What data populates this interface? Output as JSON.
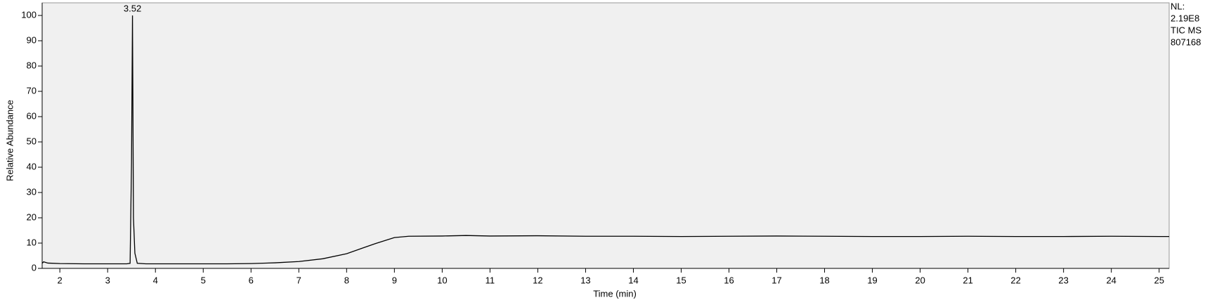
{
  "chart_data": {
    "type": "line",
    "x_label": "Time (min)",
    "y_label": "Relative Abundance",
    "annotations": [
      "NL:",
      "2.19E8",
      "TIC  MS",
      "807168"
    ],
    "peak_labels": [
      {
        "x": 3.52,
        "y": 100
      }
    ],
    "x": [
      1.63,
      1.66,
      1.75,
      2.0,
      2.5,
      3.0,
      3.4,
      3.47,
      3.5,
      3.52,
      3.54,
      3.57,
      3.62,
      3.8,
      4.5,
      5.5,
      6.0,
      6.5,
      7.0,
      7.5,
      8.0,
      8.3,
      8.6,
      9.0,
      9.3,
      10.0,
      10.5,
      11.0,
      12.0,
      13.0,
      14.0,
      15.0,
      16.0,
      17.0,
      18.0,
      19.0,
      20.0,
      21.0,
      22.0,
      23.0,
      24.0,
      25.0,
      25.21
    ],
    "series": [
      {
        "name": "TIC",
        "color": "#000000",
        "values": [
          2.0,
          2.6,
          2.1,
          1.9,
          1.8,
          1.8,
          1.8,
          2.0,
          42,
          100,
          20,
          6,
          2.0,
          1.8,
          1.8,
          1.8,
          1.9,
          2.2,
          2.7,
          3.8,
          5.8,
          7.8,
          9.8,
          12.2,
          12.7,
          12.8,
          13.0,
          12.8,
          12.9,
          12.7,
          12.7,
          12.6,
          12.7,
          12.8,
          12.7,
          12.6,
          12.6,
          12.7,
          12.6,
          12.6,
          12.7,
          12.6,
          12.6
        ]
      }
    ],
    "xlim": [
      1.63,
      25.21
    ],
    "ylim": [
      0,
      105
    ],
    "xticks": [
      2,
      3,
      4,
      5,
      6,
      7,
      8,
      9,
      10,
      11,
      12,
      13,
      14,
      15,
      16,
      17,
      18,
      19,
      20,
      21,
      22,
      23,
      24,
      25
    ],
    "yticks": [
      0,
      10,
      20,
      30,
      40,
      50,
      60,
      70,
      80,
      90,
      100
    ],
    "plot_background": "#f0f0f0"
  }
}
